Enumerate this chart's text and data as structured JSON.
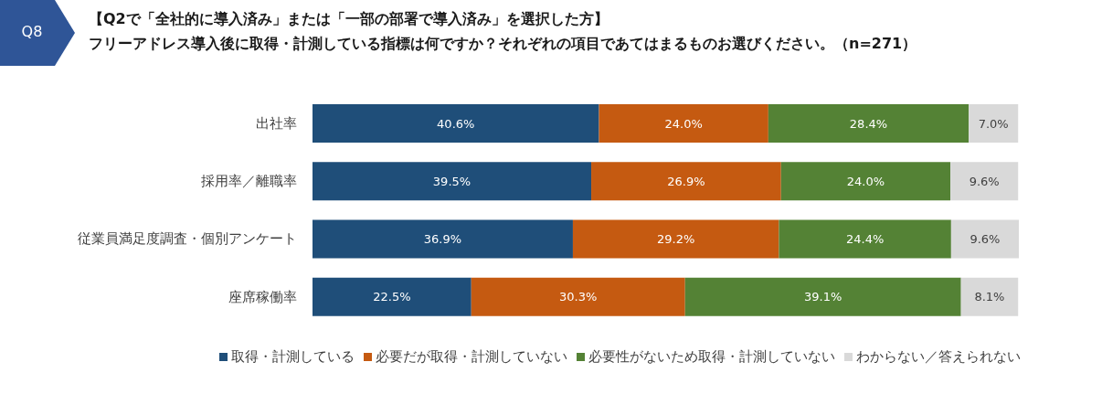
{
  "chart_data": {
    "type": "bar",
    "orientation": "horizontal",
    "stacked": true,
    "title": "【Q2で「全社的に導入済み」または「一部の部署で導入済み」を選択した方】",
    "subtitle": "フリーアドレス導入後に取得・計測している指標は何ですか？それぞれの項目であてはまるものお選びください。（n=271）",
    "annotations": [
      "Q8"
    ],
    "categories": [
      "出社率",
      "採用率／離職率",
      "従業員満足度調査・個別アンケート",
      "座席稼働率"
    ],
    "series": [
      {
        "name": "取得・計測している",
        "color": "#1f4e79",
        "values": [
          40.6,
          39.5,
          36.9,
          22.5
        ],
        "value_labels": [
          "40.6%",
          "39.5%",
          "36.9%",
          "22.5%"
        ]
      },
      {
        "name": "必要だが取得・計測していない",
        "color": "#c55a11",
        "values": [
          24.0,
          26.9,
          29.2,
          30.3
        ],
        "value_labels": [
          "24.0%",
          "26.9%",
          "29.2%",
          "30.3%"
        ]
      },
      {
        "name": "必要性がないため取得・計測していない",
        "color": "#548235",
        "values": [
          28.4,
          24.0,
          24.4,
          39.1
        ],
        "value_labels": [
          "28.4%",
          "24.0%",
          "24.4%",
          "39.1%"
        ]
      },
      {
        "name": "わからない／答えられない",
        "color": "#d9d9d9",
        "values": [
          7.0,
          9.6,
          9.6,
          8.1
        ],
        "value_labels": [
          "7.0%",
          "9.6%",
          "9.6%",
          "8.1%"
        ]
      }
    ],
    "tick_labels": "y",
    "legend": "bottom"
  }
}
